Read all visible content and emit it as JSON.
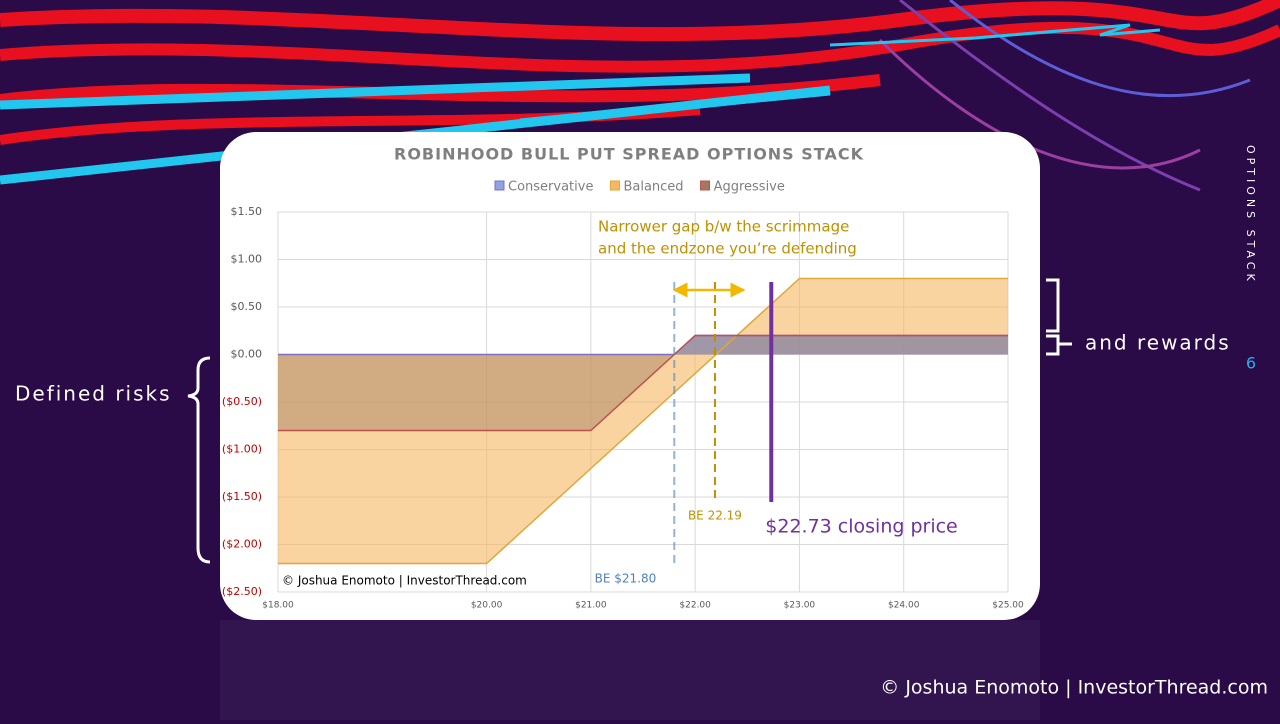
{
  "slide": {
    "left_note": "Defined risks",
    "right_note": "and rewards",
    "section": "OPTIONS STACK",
    "page": "6",
    "footer": "© Joshua Enomoto | InvestorThread.com"
  },
  "chart_data": {
    "type": "area",
    "title": "ROBINHOOD BULL PUT SPREAD OPTIONS STACK",
    "x": [
      18,
      20,
      21,
      21.8,
      22,
      23,
      25
    ],
    "series": [
      {
        "name": "Conservative",
        "color": "#7f6fbf",
        "values": [
          0,
          0,
          0,
          0,
          0.2,
          0.2,
          0.2
        ]
      },
      {
        "name": "Balanced",
        "color": "#e0a63a",
        "values": [
          -2.2,
          -2.2,
          -1.2,
          -0.4,
          -0.2,
          0.8,
          0.8
        ]
      },
      {
        "name": "Aggressive",
        "color": "#c0504d",
        "values": [
          -0.8,
          -0.8,
          -0.8,
          0,
          0.2,
          0.2,
          0.2
        ]
      }
    ],
    "xlim": [
      18,
      25
    ],
    "xticks": [
      {
        "value": 18,
        "label": "$18.00"
      },
      {
        "value": 20,
        "label": "$20.00"
      },
      {
        "value": 21,
        "label": "$21.00"
      },
      {
        "value": 22,
        "label": "$22.00"
      },
      {
        "value": 23,
        "label": "$23.00"
      },
      {
        "value": 24,
        "label": "$24.00"
      },
      {
        "value": 25,
        "label": "$25.00"
      }
    ],
    "ylim": [
      -2.5,
      1.5
    ],
    "yticks": [
      {
        "value": 1.5,
        "label": "$1.50"
      },
      {
        "value": 1,
        "label": "$1.00"
      },
      {
        "value": 0.5,
        "label": "$0.50"
      },
      {
        "value": 0,
        "label": "$0.00"
      },
      {
        "value": -0.5,
        "label": "($0.50)"
      },
      {
        "value": -1,
        "label": "($1.00)"
      },
      {
        "value": -1.5,
        "label": "($1.50)"
      },
      {
        "value": -2,
        "label": "($2.00)"
      },
      {
        "value": -2.5,
        "label": "($2.50)"
      }
    ],
    "grid": true,
    "legend": "top",
    "markers": [
      {
        "text": "BE $21.80",
        "x": 21.8,
        "color": "#4f81bd",
        "style": "dashed"
      },
      {
        "text": "BE 22.19",
        "x": 22.19,
        "color": "#c09000",
        "style": "dashed"
      },
      {
        "text": "$22.73 closing price",
        "x": 22.73,
        "color": "#7030a0",
        "style": "solid"
      }
    ],
    "note": [
      "Narrower gap b/w the scrimmage",
      "and the endzone you’re defending"
    ],
    "credit": "© Joshua Enomoto | InvestorThread.com"
  }
}
